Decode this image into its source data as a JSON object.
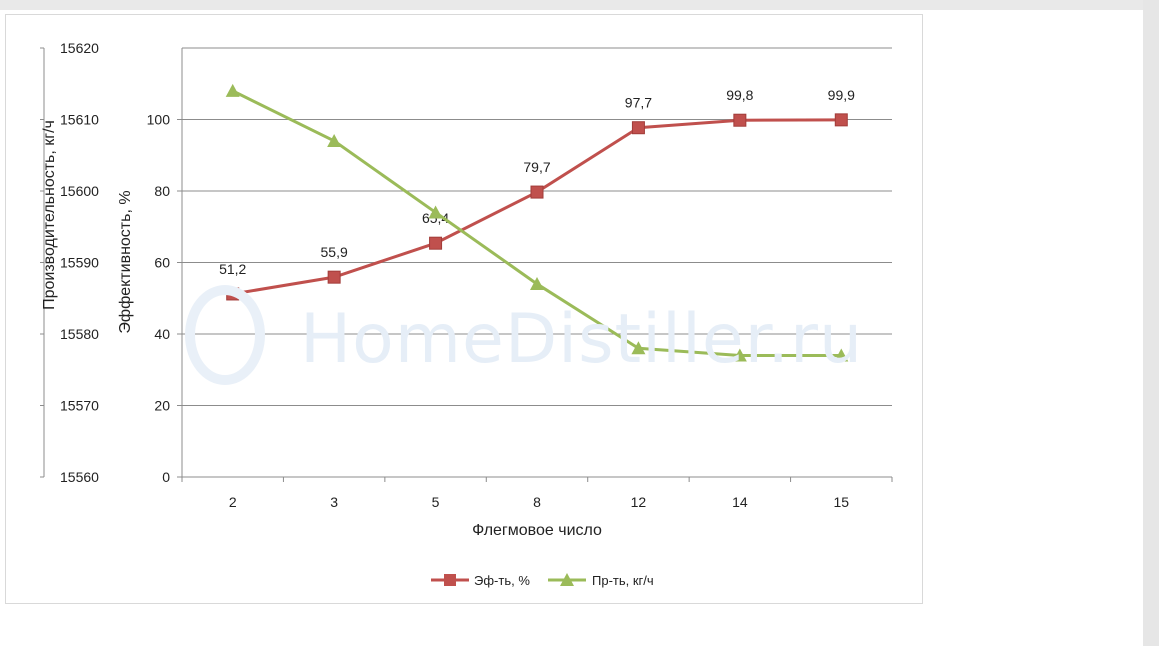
{
  "chart_data": {
    "type": "line",
    "categories": [
      "2",
      "3",
      "5",
      "8",
      "12",
      "14",
      "15"
    ],
    "xlabel": "Флегмовое число",
    "ylabel_left_outer": "Производительность, кг/ч",
    "ylabel_left_inner": "Эффективность, %",
    "y_efficiency": {
      "range": [
        0,
        100
      ],
      "ticks": [
        "0",
        "20",
        "40",
        "60",
        "80",
        "100"
      ],
      "max_drawn": 120
    },
    "y_productivity": {
      "range": [
        15560,
        15620
      ],
      "ticks": [
        "15560",
        "15570",
        "15580",
        "15590",
        "15600",
        "15610",
        "15620"
      ]
    },
    "series": [
      {
        "name": "Эф-ть, %",
        "axis": "efficiency",
        "color": "#c0504d",
        "marker": "square",
        "values": [
          51.2,
          55.9,
          65.4,
          79.7,
          97.7,
          99.8,
          99.9
        ],
        "labels": [
          "51,2",
          "55,9",
          "65,4",
          "79,7",
          "97,7",
          "99,8",
          "99,9"
        ]
      },
      {
        "name": "Пр-ть, кг/ч",
        "axis": "productivity",
        "color": "#9bbb59",
        "marker": "triangle",
        "values": [
          15614,
          15607,
          15597,
          15587,
          15578,
          15577,
          15577
        ]
      }
    ],
    "grid": true,
    "legend": "bottom"
  },
  "watermark": "HomeDistiller.ru"
}
